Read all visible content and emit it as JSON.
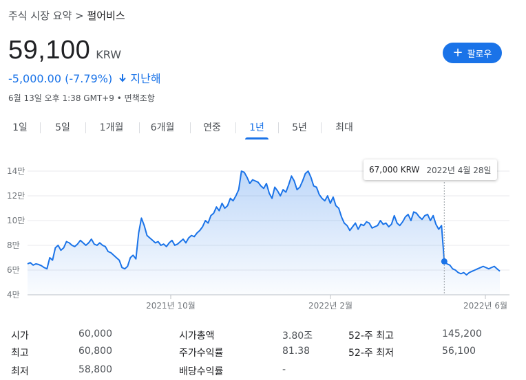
{
  "breadcrumb": {
    "root": "주식 시장 요약",
    "separator": ">",
    "current": "펄어비스"
  },
  "quote": {
    "price": "59,100",
    "currency": "KRW",
    "change": "-5,000.00 (-7.79%)",
    "period": "지난해",
    "timestamp": "6월 13일 오후 1:38 GMT+9 • 면책조항"
  },
  "follow_button": {
    "label": "팔로우",
    "color": "#1a73e8"
  },
  "tabs": [
    "1일",
    "5일",
    "1개월",
    "6개월",
    "연중",
    "1년",
    "5년",
    "최대"
  ],
  "active_tab": "1년",
  "tooltip": {
    "value": "67,000 KRW",
    "date": "2022년 4월 28일"
  },
  "chart_data": {
    "type": "area",
    "line_color": "#1a73e8",
    "y_ticks": [
      "14만",
      "12만",
      "10만",
      "8만",
      "6만",
      "4만"
    ],
    "ylim": [
      40000,
      150000
    ],
    "x_ticks": [
      "2021년 10월",
      "2022년 2월",
      "2022년 6월"
    ],
    "grid": true,
    "series": [
      {
        "values": [
          65000,
          66000,
          64000,
          65000,
          64500,
          63500,
          62000,
          61000,
          70000,
          68000,
          78000,
          80000,
          76000,
          78000,
          83000,
          82000,
          80000,
          79000,
          81000,
          84000,
          82000,
          80000,
          82000,
          85000,
          81000,
          80000,
          82000,
          80000,
          79000,
          75000,
          74000,
          72000,
          70000,
          68000,
          62000,
          61000,
          63000,
          70000,
          72000,
          69000,
          90000,
          102000,
          96000,
          88000,
          86000,
          84000,
          82000,
          83000,
          80000,
          81000,
          79000,
          82000,
          84000,
          80000,
          81000,
          83000,
          85000,
          82000,
          86000,
          88000,
          87000,
          90000,
          92000,
          95000,
          100000,
          98000,
          104000,
          106000,
          111000,
          108000,
          114000,
          110000,
          112000,
          118000,
          116000,
          120000,
          125000,
          140000,
          139000,
          135000,
          130000,
          133000,
          132000,
          131000,
          128000,
          126000,
          130000,
          122000,
          118000,
          127000,
          124000,
          120000,
          125000,
          123000,
          129000,
          136000,
          132000,
          125000,
          127000,
          132000,
          138000,
          140000,
          135000,
          128000,
          127000,
          121000,
          118000,
          116000,
          120000,
          114000,
          119000,
          112000,
          110000,
          103000,
          98000,
          96000,
          92000,
          95000,
          98000,
          93000,
          97000,
          96000,
          99000,
          98000,
          94000,
          95000,
          96000,
          100000,
          97000,
          98000,
          95000,
          97000,
          104000,
          98000,
          96000,
          99000,
          103000,
          105000,
          100000,
          107000,
          106000,
          103000,
          101000,
          104000,
          105000,
          100000,
          104000,
          97000,
          93000,
          96000,
          67000,
          65000,
          64000,
          61000,
          60000,
          58000,
          57000,
          58000,
          56100,
          58000,
          59000,
          60000,
          61000,
          62000,
          63000,
          62000,
          61000,
          62000,
          63000,
          61000,
          59100
        ]
      }
    ],
    "highlight": {
      "value": 67000,
      "index": 150
    }
  },
  "stats": [
    {
      "label": "시가",
      "value": "60,000"
    },
    {
      "label": "최고",
      "value": "60,800"
    },
    {
      "label": "최저",
      "value": "58,800"
    },
    {
      "label": "시가총액",
      "value": "3.80조"
    },
    {
      "label": "주가수익률",
      "value": "81.38"
    },
    {
      "label": "배당수익률",
      "value": "-"
    },
    {
      "label": "52-주 최고",
      "value": "145,200"
    },
    {
      "label": "52-주 최저",
      "value": "56,100"
    }
  ]
}
